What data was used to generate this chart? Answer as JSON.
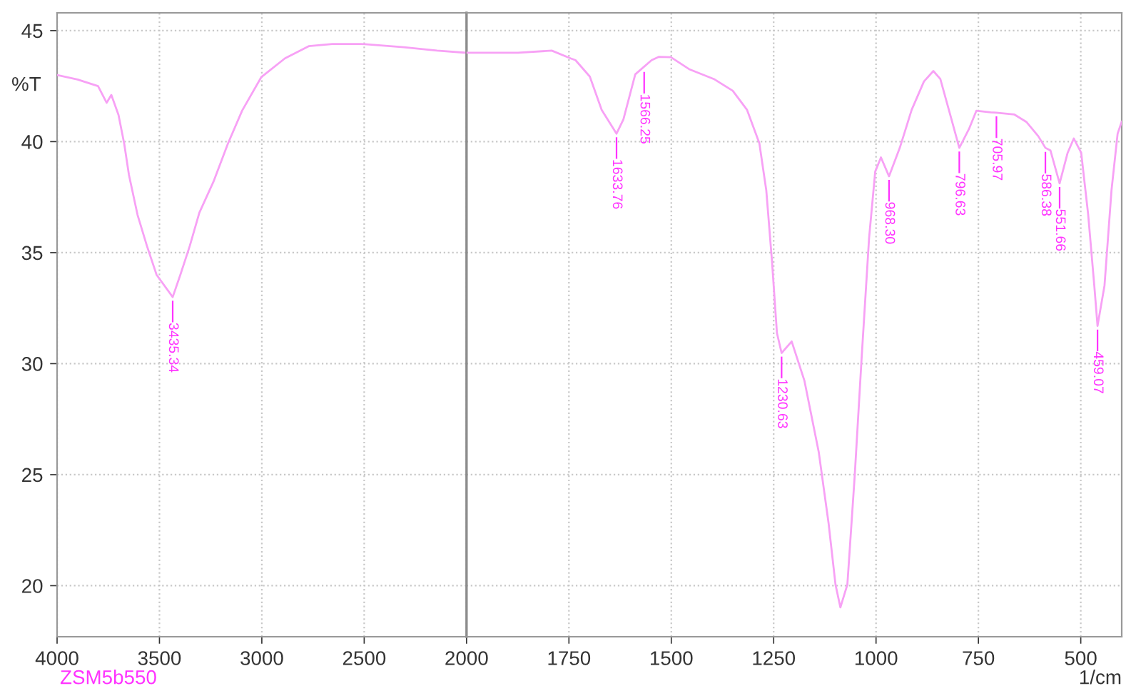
{
  "chart_data": [
    {
      "type": "line",
      "ylabel": "%T",
      "x": [
        4000,
        3900,
        3800,
        3758,
        3735,
        3700,
        3672,
        3649,
        3607,
        3561,
        3514,
        3435.34,
        3398,
        3352,
        3305,
        3236,
        3166,
        3096,
        3003,
        2887,
        2771,
        2655,
        2516,
        2307,
        2144,
        2000
      ],
      "series": [
        {
          "color": "#f7a1f5",
          "values": [
            43.0,
            42.8,
            42.5,
            41.75,
            42.1,
            41.2,
            39.9,
            38.5,
            36.7,
            35.3,
            34.0,
            33.0,
            34.0,
            35.3,
            36.8,
            38.2,
            39.9,
            41.4,
            42.9,
            43.75,
            44.3,
            44.4,
            44.4,
            44.25,
            44.1,
            44.0
          ]
        }
      ],
      "xlim": [
        4000,
        2000
      ],
      "ylim": [
        17.7,
        45.8
      ],
      "xticks": [
        4000,
        3500,
        3000,
        2500,
        2000
      ],
      "yticks": [
        20,
        25,
        30,
        35,
        40,
        45
      ],
      "grid": true,
      "marker": "none",
      "line_style": "solid",
      "annotations": [
        {
          "text": "3435.34",
          "x": 3435.34,
          "y": 33.0
        },
        "ZSM5b550"
      ]
    },
    {
      "type": "line",
      "xlabel": "1/cm",
      "x": [
        2000,
        1874,
        1792,
        1746,
        1734,
        1699,
        1670,
        1633.76,
        1617,
        1588,
        1548,
        1530,
        1501,
        1455,
        1396,
        1350,
        1315,
        1285,
        1268,
        1254,
        1242,
        1230.63,
        1206,
        1175,
        1140,
        1116,
        1099,
        1087,
        1070,
        1052,
        1035,
        1017,
        1002,
        988,
        968.3,
        942,
        913,
        883,
        860,
        843,
        819,
        796.63,
        773,
        755,
        720,
        705.97,
        662,
        633,
        604,
        586.38,
        574,
        551.66,
        532,
        517,
        499,
        482,
        467,
        459.07,
        442,
        425,
        410,
        400
      ],
      "series": [
        {
          "color": "#f7a1f5",
          "values": [
            44.0,
            44.0,
            44.1,
            43.75,
            43.67,
            42.93,
            41.43,
            40.36,
            41.0,
            43.03,
            43.67,
            43.82,
            43.8,
            43.25,
            42.82,
            42.29,
            41.43,
            39.93,
            37.8,
            34.59,
            31.38,
            30.48,
            31.0,
            29.24,
            26.03,
            22.83,
            20.05,
            19.02,
            20.05,
            24.97,
            30.31,
            35.65,
            38.65,
            39.29,
            38.44,
            39.72,
            41.43,
            42.71,
            43.18,
            42.82,
            41.22,
            39.72,
            40.57,
            41.39,
            41.32,
            41.3,
            41.22,
            40.89,
            40.25,
            39.72,
            39.6,
            38.12,
            39.5,
            40.14,
            39.5,
            36.73,
            33.52,
            31.7,
            33.52,
            37.8,
            40.36,
            40.9
          ]
        }
      ],
      "xlim": [
        2000,
        400
      ],
      "ylim": [
        17.7,
        45.8
      ],
      "xticks": [
        1750,
        1500,
        1250,
        1000,
        750,
        500
      ],
      "yticks": [
        20,
        25,
        30,
        35,
        40,
        45
      ],
      "tick_labels": "x",
      "grid": true,
      "marker": "none",
      "line_style": "solid",
      "annotations": [
        {
          "text": "1633.76",
          "x": 1633.76,
          "y": 40.36
        },
        {
          "text": "1566.25",
          "x": 1566.25,
          "y": 43.3
        },
        {
          "text": "1230.63",
          "x": 1230.63,
          "y": 30.48
        },
        {
          "text": "968.30",
          "x": 968.3,
          "y": 38.44
        },
        {
          "text": "796.63",
          "x": 796.63,
          "y": 39.72
        },
        {
          "text": "705.97",
          "x": 705.97,
          "y": 41.3
        },
        {
          "text": "586.38",
          "x": 586.38,
          "y": 39.7
        },
        {
          "text": "551.66",
          "x": 551.66,
          "y": 38.12
        },
        {
          "text": "459.07",
          "x": 459.07,
          "y": 31.7
        }
      ]
    }
  ]
}
